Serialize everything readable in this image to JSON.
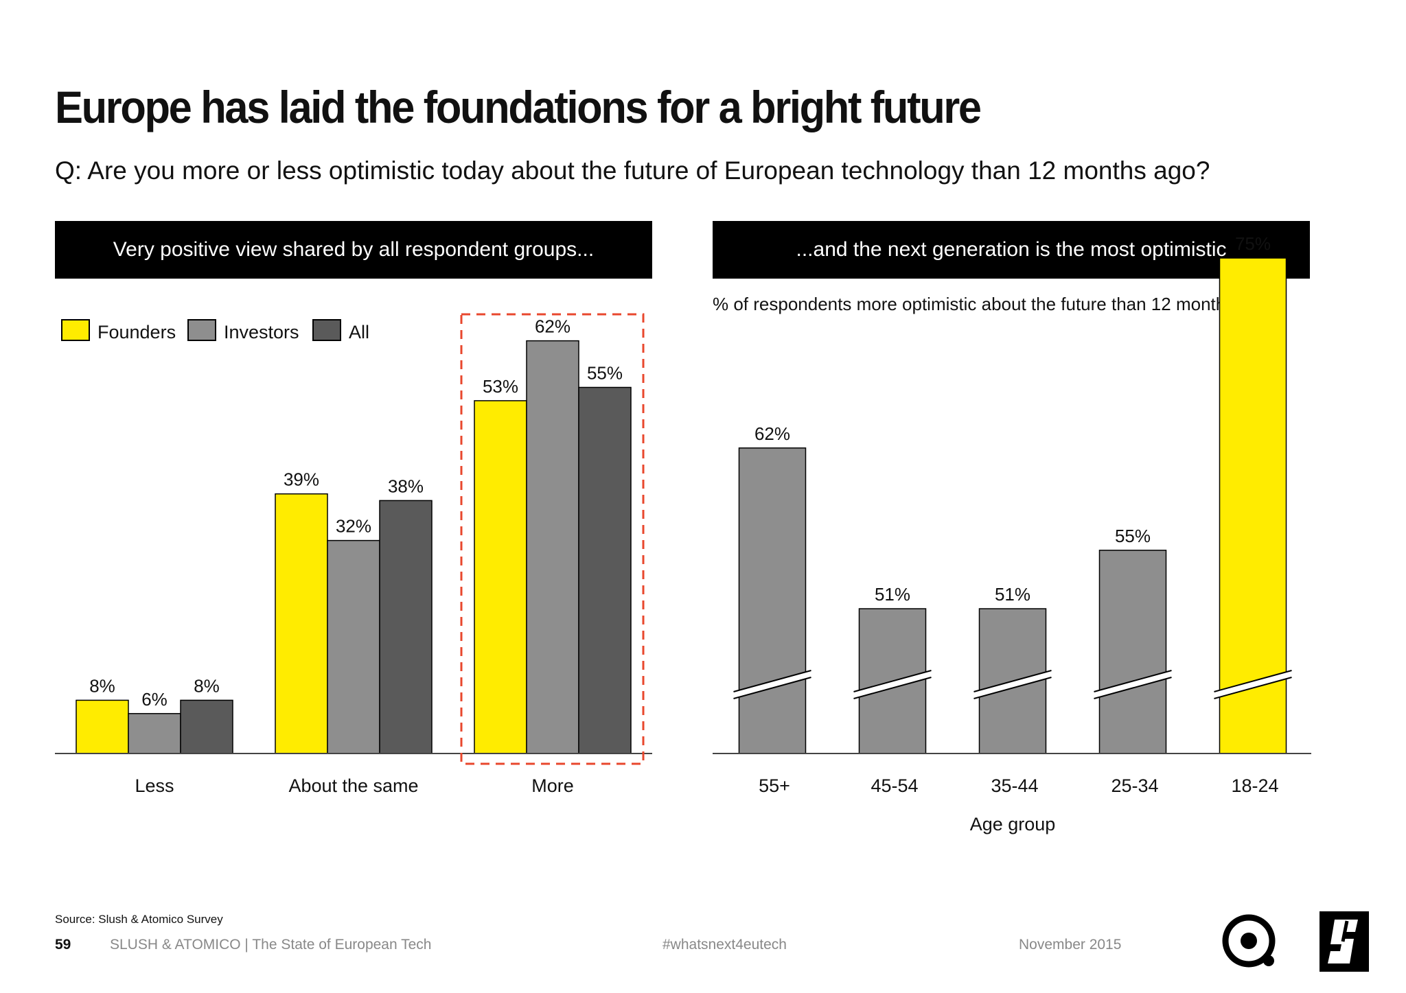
{
  "title": "Europe has laid the foundations for a bright future",
  "question": "Q: Are you more or less optimistic today about the future of European technology than 12 months ago?",
  "colors": {
    "founders": "#ffec00",
    "investors": "#8e8e8e",
    "all": "#5a5a5a",
    "highlight": "#e8472d",
    "banner": "#000000"
  },
  "chart_data": [
    {
      "type": "bar",
      "banner": "Very positive view shared by all respondent groups...",
      "categories": [
        "Less",
        "About the same",
        "More"
      ],
      "series": [
        {
          "name": "Founders",
          "values": [
            8,
            39,
            53
          ]
        },
        {
          "name": "Investors",
          "values": [
            6,
            32,
            62
          ]
        },
        {
          "name": "All",
          "values": [
            8,
            38,
            55
          ]
        }
      ],
      "value_labels": [
        [
          "8%",
          "39%",
          "53%"
        ],
        [
          "6%",
          "32%",
          "62%"
        ],
        [
          "8%",
          "38%",
          "55%"
        ]
      ],
      "legend": [
        "Founders",
        "Investors",
        "All"
      ],
      "legend_position": "top-left",
      "highlighted_category": "More",
      "xlabel": "",
      "ylabel": "",
      "ylim": [
        0,
        65
      ],
      "grid": false
    },
    {
      "type": "bar",
      "banner": "...and the next generation is the most optimistic",
      "subtitle": "% of respondents more optimistic about the future than 12 months ago",
      "categories": [
        "55+",
        "45-54",
        "35-44",
        "25-34",
        "18-24"
      ],
      "values": [
        62,
        51,
        51,
        55,
        75
      ],
      "value_labels": [
        "62%",
        "51%",
        "51%",
        "55%",
        "75%"
      ],
      "highlighted_category": "18-24",
      "xlabel": "Age group",
      "ylabel": "",
      "axis_break": true,
      "grid": false
    }
  ],
  "footer": {
    "source": "Source: Slush & Atomico Survey",
    "page_number": "59",
    "org": "SLUSH & ATOMICO  |  The State of European Tech",
    "hashtag": "#whatsnext4eutech",
    "date": "November 2015"
  },
  "logos": {
    "left": "atomico-logo",
    "right": "slush-logo"
  }
}
